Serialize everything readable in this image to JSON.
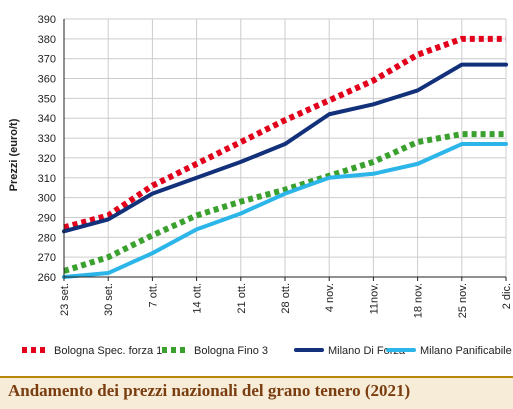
{
  "footer": {
    "title": "Andamento dei prezzi nazionali del grano tenero (2021)"
  },
  "colors": {
    "grid": "#cccccc",
    "axis": "#222222",
    "footer_bg": "#f6ecd8",
    "footer_text": "#7a3d10"
  },
  "chart_data": {
    "type": "line",
    "title": "Andamento dei prezzi nazionali del grano tenero (2021)",
    "xlabel": "",
    "ylabel": "Prezzi (euro/t)",
    "ylim": [
      260,
      390
    ],
    "yticks": [
      260,
      270,
      280,
      290,
      300,
      310,
      320,
      330,
      340,
      350,
      360,
      370,
      380,
      390
    ],
    "categories": [
      "23 set.",
      "30 set.",
      "7 ott.",
      "14 ott.",
      "21 ott.",
      "28 ott.",
      "4 nov.",
      "11nov.",
      "18 nov.",
      "25 nov.",
      "2 dic."
    ],
    "grid": true,
    "legend_position": "bottom",
    "series": [
      {
        "name": "Bologna Spec. forza 1",
        "color": "#e3001b",
        "style": "dotted",
        "values": [
          285,
          291,
          306,
          317,
          328,
          339,
          349,
          359,
          372,
          380,
          380
        ]
      },
      {
        "name": "Bologna Fino 3",
        "color": "#3aa02e",
        "style": "dotted",
        "values": [
          263,
          270,
          281,
          291,
          298,
          304,
          311,
          318,
          328,
          332,
          332
        ]
      },
      {
        "name": "Milano Di Forza",
        "color": "#12317a",
        "style": "solid",
        "values": [
          283,
          289,
          302,
          310,
          318,
          327,
          342,
          347,
          354,
          367,
          367
        ]
      },
      {
        "name": "Milano Panificabile",
        "color": "#2bb5e8",
        "style": "solid",
        "values": [
          260,
          262,
          272,
          284,
          292,
          302,
          310,
          312,
          317,
          327,
          327
        ]
      }
    ]
  }
}
